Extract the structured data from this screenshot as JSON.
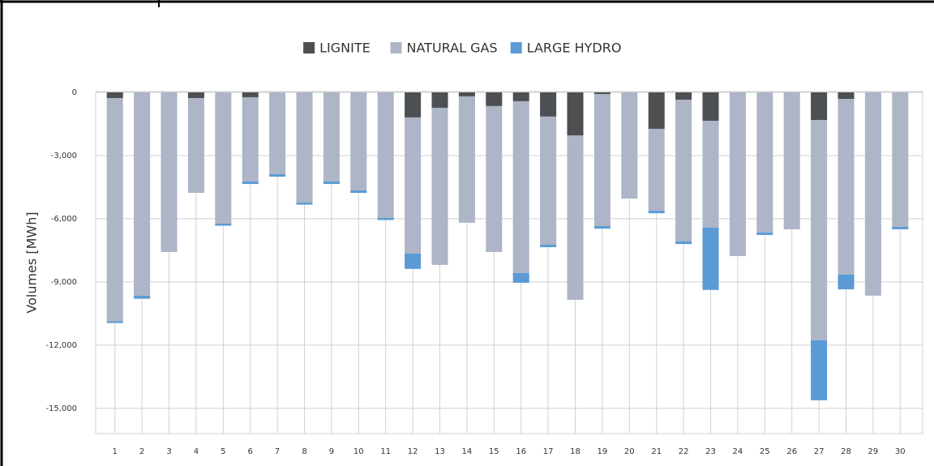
{
  "chart_data": {
    "type": "stacked-bar",
    "y_label": "Volumes [MWh]",
    "categories": [
      "1",
      "2",
      "3",
      "4",
      "5",
      "6",
      "7",
      "8",
      "9",
      "10",
      "11",
      "12",
      "13",
      "14",
      "15",
      "16",
      "17",
      "18",
      "19",
      "20",
      "21",
      "22",
      "23",
      "24",
      "25",
      "26",
      "27",
      "28",
      "29",
      "30"
    ],
    "series": [
      {
        "name": "LIGNITE",
        "color": "#4d5052",
        "values": [
          -270,
          0,
          0,
          -270,
          0,
          -230,
          0,
          0,
          0,
          0,
          0,
          -1190,
          -730,
          -190,
          -650,
          -420,
          -1150,
          -2040,
          -80,
          0,
          -1730,
          -350,
          -1350,
          0,
          0,
          0,
          -1310,
          -310,
          0,
          0
        ]
      },
      {
        "name": "NATURAL GAS",
        "color": "#adb5c7",
        "values": [
          -10600,
          -9650,
          -7580,
          -4500,
          -6230,
          -4000,
          -3880,
          -5230,
          -4230,
          -4650,
          -5960,
          -6460,
          -7460,
          -6000,
          -6930,
          -8160,
          -6080,
          -7810,
          -6270,
          -5040,
          -3890,
          -6730,
          -5070,
          -7770,
          -6650,
          -6500,
          -10460,
          -8340,
          -9650,
          -6380
        ]
      },
      {
        "name": "LARGE HYDRO",
        "color": "#5b9bd5",
        "values": [
          -80,
          -150,
          0,
          0,
          -100,
          -120,
          -120,
          -100,
          -120,
          -120,
          -100,
          -730,
          0,
          0,
          0,
          -460,
          -120,
          0,
          -120,
          0,
          -120,
          -120,
          -2960,
          0,
          -120,
          0,
          -2850,
          -700,
          0,
          -120
        ]
      }
    ],
    "ylim": [
      -16200,
      0
    ],
    "yticks": [
      0,
      {
        "value": -3000,
        "label": "-3,000"
      },
      {
        "value": -6000,
        "label": "-6,000"
      },
      {
        "value": -9000,
        "label": "-9,000"
      },
      {
        "value": -12000,
        "label": "-12,000"
      },
      {
        "value": -15000,
        "label": "-15,000"
      }
    ],
    "grid": true,
    "legend": "top"
  }
}
